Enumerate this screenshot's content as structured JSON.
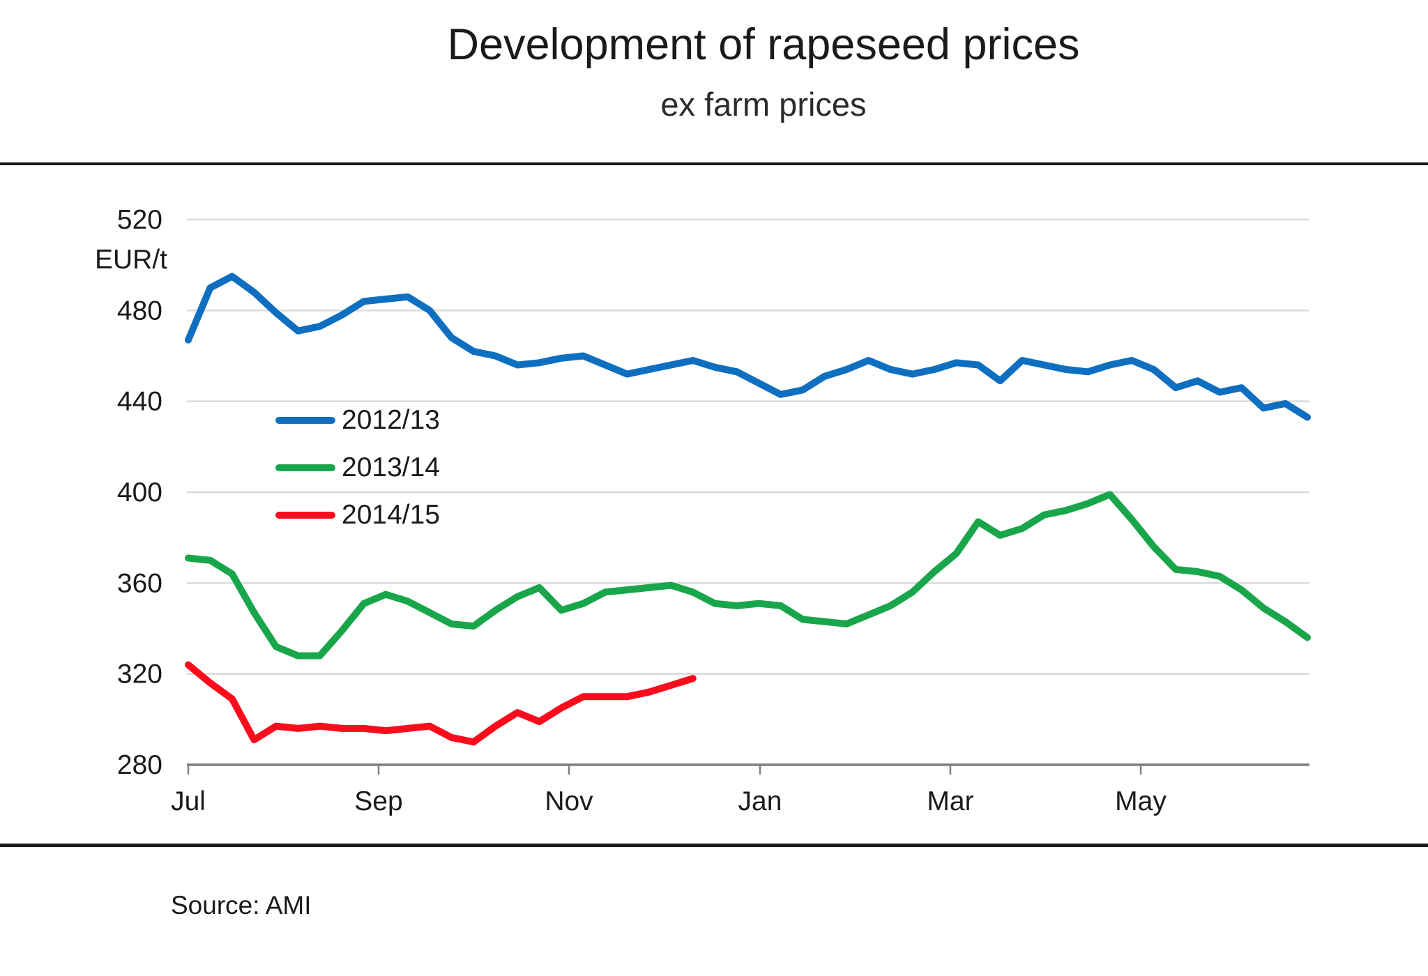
{
  "title": "Development of rapeseed prices",
  "subtitle": "ex farm prices",
  "source_note": "Source: AMI",
  "colors": {
    "series_2012_13": "#0E6FC1",
    "series_2013_14": "#19A64B",
    "series_2014_15": "#FA0C1C",
    "gridline": "#D9D9D9",
    "axis": "#7F7F7F",
    "text": "#1A1A1A",
    "rule": "#1A1A1A",
    "background": "#FFFFFF"
  },
  "chart_data": {
    "type": "line",
    "title": "Development of rapeseed prices",
    "subtitle": "ex farm prices",
    "ylabel": "EUR/t",
    "ylim": [
      280,
      520
    ],
    "yticks": [
      520,
      480,
      440,
      400,
      360,
      320,
      280
    ],
    "xticks": [
      "Jul",
      "Sep",
      "Nov",
      "Jan",
      "Mar",
      "May"
    ],
    "x_unit": "weekly prices, marketing season July to June",
    "grid": "horizontal",
    "legend_position": "inside-upper-left",
    "series": [
      {
        "name": "2012/13",
        "color": "#0E6FC1",
        "values": [
          467,
          490,
          495,
          488,
          479,
          471,
          473,
          478,
          484,
          485,
          486,
          480,
          468,
          462,
          460,
          456,
          457,
          459,
          460,
          456,
          452,
          454,
          456,
          458,
          455,
          453,
          448,
          443,
          445,
          451,
          454,
          458,
          454,
          452,
          454,
          457,
          456,
          449,
          458,
          456,
          454,
          453,
          456,
          458,
          454,
          446,
          449,
          444,
          446,
          437,
          439,
          433
        ]
      },
      {
        "name": "2013/14",
        "color": "#19A64B",
        "values": [
          371,
          370,
          364,
          347,
          332,
          328,
          328,
          339,
          351,
          355,
          352,
          347,
          342,
          341,
          348,
          354,
          358,
          348,
          351,
          356,
          357,
          358,
          359,
          356,
          351,
          350,
          351,
          350,
          344,
          343,
          342,
          346,
          350,
          356,
          365,
          373,
          387,
          381,
          384,
          390,
          392,
          395,
          399,
          388,
          376,
          366,
          365,
          363,
          357,
          349,
          343,
          336
        ]
      },
      {
        "name": "2014/15",
        "color": "#FA0C1C",
        "values": [
          324,
          316,
          309,
          291,
          297,
          296,
          297,
          296,
          296,
          295,
          296,
          297,
          292,
          290,
          297,
          303,
          299,
          305,
          310,
          310,
          310,
          312,
          315,
          318
        ]
      }
    ]
  }
}
